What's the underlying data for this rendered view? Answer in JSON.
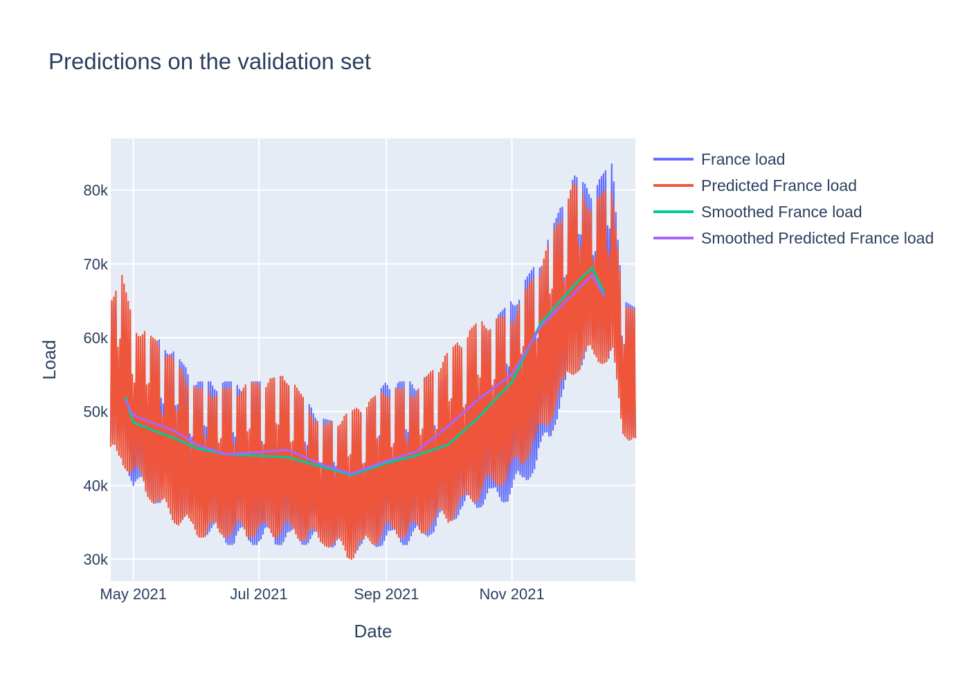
{
  "chart_data": {
    "type": "line",
    "title": "Predictions on the validation set",
    "xlabel": "Date",
    "ylabel": "Load",
    "x_range": [
      "2021-04-20",
      "2021-12-31"
    ],
    "ylim": [
      27000,
      87000
    ],
    "y_ticks": [
      30000,
      40000,
      50000,
      60000,
      70000,
      80000
    ],
    "y_tick_labels": [
      "30k",
      "40k",
      "50k",
      "60k",
      "70k",
      "80k"
    ],
    "x_ticks": [
      "2021-05-01",
      "2021-07-01",
      "2021-09-01",
      "2021-11-01"
    ],
    "x_tick_labels": [
      "May 2021",
      "Jul 2021",
      "Sep 2021",
      "Nov 2021"
    ],
    "grid": true,
    "legend_position": "right",
    "series": [
      {
        "name": "France load",
        "color": "#636efa",
        "style": "daily-oscillating hourly series",
        "points": [
          {
            "date": "2021-04-20",
            "low": 45000,
            "high": 65000
          },
          {
            "date": "2021-04-25",
            "low": 44000,
            "high": 67000
          },
          {
            "date": "2021-05-01",
            "low": 40000,
            "high": 57000
          },
          {
            "date": "2021-05-15",
            "low": 37000,
            "high": 60000
          },
          {
            "date": "2021-06-01",
            "low": 34000,
            "high": 54000
          },
          {
            "date": "2021-06-15",
            "low": 32000,
            "high": 54000
          },
          {
            "date": "2021-07-01",
            "low": 32000,
            "high": 54000
          },
          {
            "date": "2021-07-15",
            "low": 32000,
            "high": 54000
          },
          {
            "date": "2021-08-01",
            "low": 32000,
            "high": 49000
          },
          {
            "date": "2021-08-15",
            "low": 31000,
            "high": 48000
          },
          {
            "date": "2021-09-01",
            "low": 32000,
            "high": 54000
          },
          {
            "date": "2021-09-15",
            "low": 32000,
            "high": 54000
          },
          {
            "date": "2021-10-01",
            "low": 35000,
            "high": 56000
          },
          {
            "date": "2021-10-15",
            "low": 37000,
            "high": 60000
          },
          {
            "date": "2021-11-01",
            "low": 38000,
            "high": 65000
          },
          {
            "date": "2021-11-15",
            "low": 43000,
            "high": 71000
          },
          {
            "date": "2021-12-01",
            "low": 55000,
            "high": 82000
          },
          {
            "date": "2021-12-10",
            "low": 58000,
            "high": 80000
          },
          {
            "date": "2021-12-20",
            "low": 57000,
            "high": 84000
          },
          {
            "date": "2021-12-25",
            "low": 48000,
            "high": 65000
          },
          {
            "date": "2021-12-31",
            "low": 46000,
            "high": 64000
          }
        ]
      },
      {
        "name": "Predicted France load",
        "color": "#ef553b",
        "style": "daily-oscillating hourly series",
        "points": [
          {
            "date": "2021-04-20",
            "low": 43000,
            "high": 66000
          },
          {
            "date": "2021-04-25",
            "low": 43000,
            "high": 69000
          },
          {
            "date": "2021-05-01",
            "low": 41000,
            "high": 62000
          },
          {
            "date": "2021-05-15",
            "low": 36000,
            "high": 59000
          },
          {
            "date": "2021-06-01",
            "low": 33000,
            "high": 53000
          },
          {
            "date": "2021-06-15",
            "low": 33000,
            "high": 53000
          },
          {
            "date": "2021-07-01",
            "low": 33000,
            "high": 54000
          },
          {
            "date": "2021-07-15",
            "low": 33000,
            "high": 55000
          },
          {
            "date": "2021-08-01",
            "low": 32000,
            "high": 48000
          },
          {
            "date": "2021-08-15",
            "low": 30000,
            "high": 50000
          },
          {
            "date": "2021-09-01",
            "low": 33000,
            "high": 53000
          },
          {
            "date": "2021-09-15",
            "low": 33000,
            "high": 53000
          },
          {
            "date": "2021-10-01",
            "low": 35000,
            "high": 58000
          },
          {
            "date": "2021-10-15",
            "low": 38000,
            "high": 62000
          },
          {
            "date": "2021-11-01",
            "low": 41000,
            "high": 63000
          },
          {
            "date": "2021-11-15",
            "low": 46000,
            "high": 70000
          },
          {
            "date": "2021-12-01",
            "low": 55000,
            "high": 81000
          },
          {
            "date": "2021-12-10",
            "low": 57000,
            "high": 78000
          },
          {
            "date": "2021-12-20",
            "low": 56000,
            "high": 81000
          },
          {
            "date": "2021-12-25",
            "low": 47000,
            "high": 64000
          },
          {
            "date": "2021-12-31",
            "low": 45000,
            "high": 64000
          }
        ]
      },
      {
        "name": "Smoothed France load",
        "color": "#00cc96",
        "style": "line",
        "points": [
          {
            "date": "2021-04-27",
            "y": 52000
          },
          {
            "date": "2021-05-01",
            "y": 48500
          },
          {
            "date": "2021-05-10",
            "y": 47500
          },
          {
            "date": "2021-05-20",
            "y": 46500
          },
          {
            "date": "2021-06-01",
            "y": 45000
          },
          {
            "date": "2021-06-15",
            "y": 44200
          },
          {
            "date": "2021-07-01",
            "y": 44000
          },
          {
            "date": "2021-07-15",
            "y": 43800
          },
          {
            "date": "2021-08-01",
            "y": 42500
          },
          {
            "date": "2021-08-15",
            "y": 41400
          },
          {
            "date": "2021-09-01",
            "y": 43000
          },
          {
            "date": "2021-09-15",
            "y": 44000
          },
          {
            "date": "2021-10-01",
            "y": 45500
          },
          {
            "date": "2021-10-15",
            "y": 49000
          },
          {
            "date": "2021-11-01",
            "y": 54000
          },
          {
            "date": "2021-11-15",
            "y": 62000
          },
          {
            "date": "2021-12-01",
            "y": 67000
          },
          {
            "date": "2021-12-10",
            "y": 69500
          },
          {
            "date": "2021-12-16",
            "y": 66000
          }
        ]
      },
      {
        "name": "Smoothed Predicted France load",
        "color": "#ab63fa",
        "style": "line",
        "points": [
          {
            "date": "2021-04-27",
            "y": 51500
          },
          {
            "date": "2021-05-01",
            "y": 49500
          },
          {
            "date": "2021-05-10",
            "y": 48500
          },
          {
            "date": "2021-05-20",
            "y": 47500
          },
          {
            "date": "2021-06-01",
            "y": 45500
          },
          {
            "date": "2021-06-15",
            "y": 44200
          },
          {
            "date": "2021-07-01",
            "y": 44500
          },
          {
            "date": "2021-07-15",
            "y": 44800
          },
          {
            "date": "2021-08-01",
            "y": 42800
          },
          {
            "date": "2021-08-15",
            "y": 41600
          },
          {
            "date": "2021-09-01",
            "y": 43300
          },
          {
            "date": "2021-09-15",
            "y": 44500
          },
          {
            "date": "2021-10-01",
            "y": 48000
          },
          {
            "date": "2021-10-15",
            "y": 51500
          },
          {
            "date": "2021-11-01",
            "y": 55000
          },
          {
            "date": "2021-11-15",
            "y": 61500
          },
          {
            "date": "2021-12-01",
            "y": 66000
          },
          {
            "date": "2021-12-10",
            "y": 68500
          },
          {
            "date": "2021-12-16",
            "y": 65500
          }
        ]
      }
    ]
  }
}
